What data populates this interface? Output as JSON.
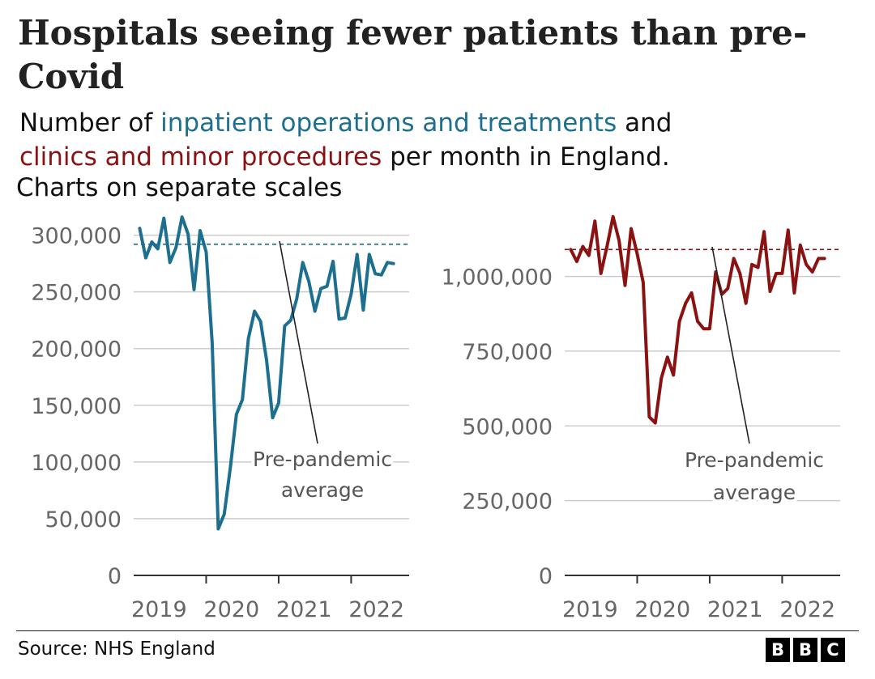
{
  "title": "Hospitals seeing fewer patients than pre-Covid",
  "subtitle": {
    "prefix": "Number of ",
    "series1": "inpatient operations and treatments",
    "middle": " and",
    "series2": "clinics and minor procedures",
    "suffix": " per month in England."
  },
  "note": "Charts on separate scales",
  "source": "Source: NHS England",
  "logo": [
    "B",
    "B",
    "C"
  ],
  "colors": {
    "series1": "#1d6f8f",
    "series2": "#8b1212",
    "grid": "#cccccc",
    "axis": "#333333"
  },
  "chart_data": [
    {
      "type": "line",
      "series": [
        {
          "name": "inpatient operations and treatments",
          "x": [
            2019.083,
            2019.167,
            2019.25,
            2019.333,
            2019.417,
            2019.5,
            2019.583,
            2019.667,
            2019.75,
            2019.833,
            2019.917,
            2020.0,
            2020.083,
            2020.167,
            2020.25,
            2020.333,
            2020.417,
            2020.5,
            2020.583,
            2020.667,
            2020.75,
            2020.833,
            2020.917,
            2021.0,
            2021.083,
            2021.167,
            2021.25,
            2021.333,
            2021.417,
            2021.5,
            2021.583,
            2021.667,
            2021.75,
            2021.833,
            2021.917,
            2022.0,
            2022.083,
            2022.167,
            2022.25,
            2022.333,
            2022.417,
            2022.5,
            2022.583
          ],
          "values": [
            306000,
            280000,
            294000,
            288000,
            315000,
            276000,
            289000,
            316000,
            301000,
            252000,
            304000,
            285000,
            205000,
            41000,
            54000,
            95000,
            142000,
            155000,
            209000,
            233000,
            224000,
            190000,
            139000,
            152000,
            220000,
            225000,
            244000,
            276000,
            259000,
            233000,
            253000,
            255000,
            277000,
            226000,
            227000,
            248000,
            283000,
            234000,
            283000,
            266000,
            265000,
            276000,
            275000
          ]
        }
      ],
      "reference_line": {
        "label": "Pre-pandemic average",
        "value": 292000
      },
      "annotation": [
        "Pre-pandemic",
        "average"
      ],
      "y_ticks": [
        0,
        50000,
        100000,
        150000,
        200000,
        250000,
        300000
      ],
      "y_tick_labels": [
        "0",
        "50,000",
        "100,000",
        "150,000",
        "200,000",
        "250,000",
        "300,000"
      ],
      "x_ticks": [
        2020,
        2021,
        2022
      ],
      "x_tick_labels": [
        "2019",
        "2020",
        "2021",
        "2022"
      ],
      "x_label_positions": [
        2019.35,
        2020.35,
        2021.35,
        2022.35
      ],
      "xlim": [
        2019,
        2022.8
      ],
      "ylim": [
        0,
        319000
      ],
      "title": "",
      "xlabel": "",
      "ylabel": ""
    },
    {
      "type": "line",
      "series": [
        {
          "name": "clinics and minor procedures",
          "x": [
            2019.083,
            2019.167,
            2019.25,
            2019.333,
            2019.417,
            2019.5,
            2019.583,
            2019.667,
            2019.75,
            2019.833,
            2019.917,
            2020.0,
            2020.083,
            2020.167,
            2020.25,
            2020.333,
            2020.417,
            2020.5,
            2020.583,
            2020.667,
            2020.75,
            2020.833,
            2020.917,
            2021.0,
            2021.083,
            2021.167,
            2021.25,
            2021.333,
            2021.417,
            2021.5,
            2021.583,
            2021.667,
            2021.75,
            2021.833,
            2021.917,
            2022.0,
            2022.083,
            2022.167,
            2022.25,
            2022.333,
            2022.417,
            2022.5,
            2022.583
          ],
          "values": [
            1090000,
            1050000,
            1100000,
            1070000,
            1185000,
            1010000,
            1100000,
            1200000,
            1120000,
            970000,
            1160000,
            1075000,
            980000,
            530000,
            510000,
            660000,
            730000,
            670000,
            850000,
            910000,
            945000,
            850000,
            825000,
            825000,
            1015000,
            940000,
            960000,
            1060000,
            1010000,
            910000,
            1040000,
            1030000,
            1150000,
            950000,
            1010000,
            1010000,
            1155000,
            945000,
            1105000,
            1040000,
            1015000,
            1060000,
            1060000
          ]
        }
      ],
      "reference_line": {
        "label": "Pre-pandemic average",
        "value": 1090000
      },
      "annotation": [
        "Pre-pandemic",
        "average"
      ],
      "y_ticks": [
        0,
        250000,
        500000,
        750000,
        1000000
      ],
      "y_tick_labels": [
        "0",
        "250,000",
        "500,000",
        "750,000",
        "1,000,000"
      ],
      "x_ticks": [
        2020,
        2021,
        2022
      ],
      "x_tick_labels": [
        "2019",
        "2020",
        "2021",
        "2022"
      ],
      "x_label_positions": [
        2019.35,
        2020.35,
        2021.35,
        2022.35
      ],
      "xlim": [
        2019,
        2022.8
      ],
      "ylim": [
        0,
        1210000
      ],
      "title": "",
      "xlabel": "",
      "ylabel": ""
    }
  ]
}
